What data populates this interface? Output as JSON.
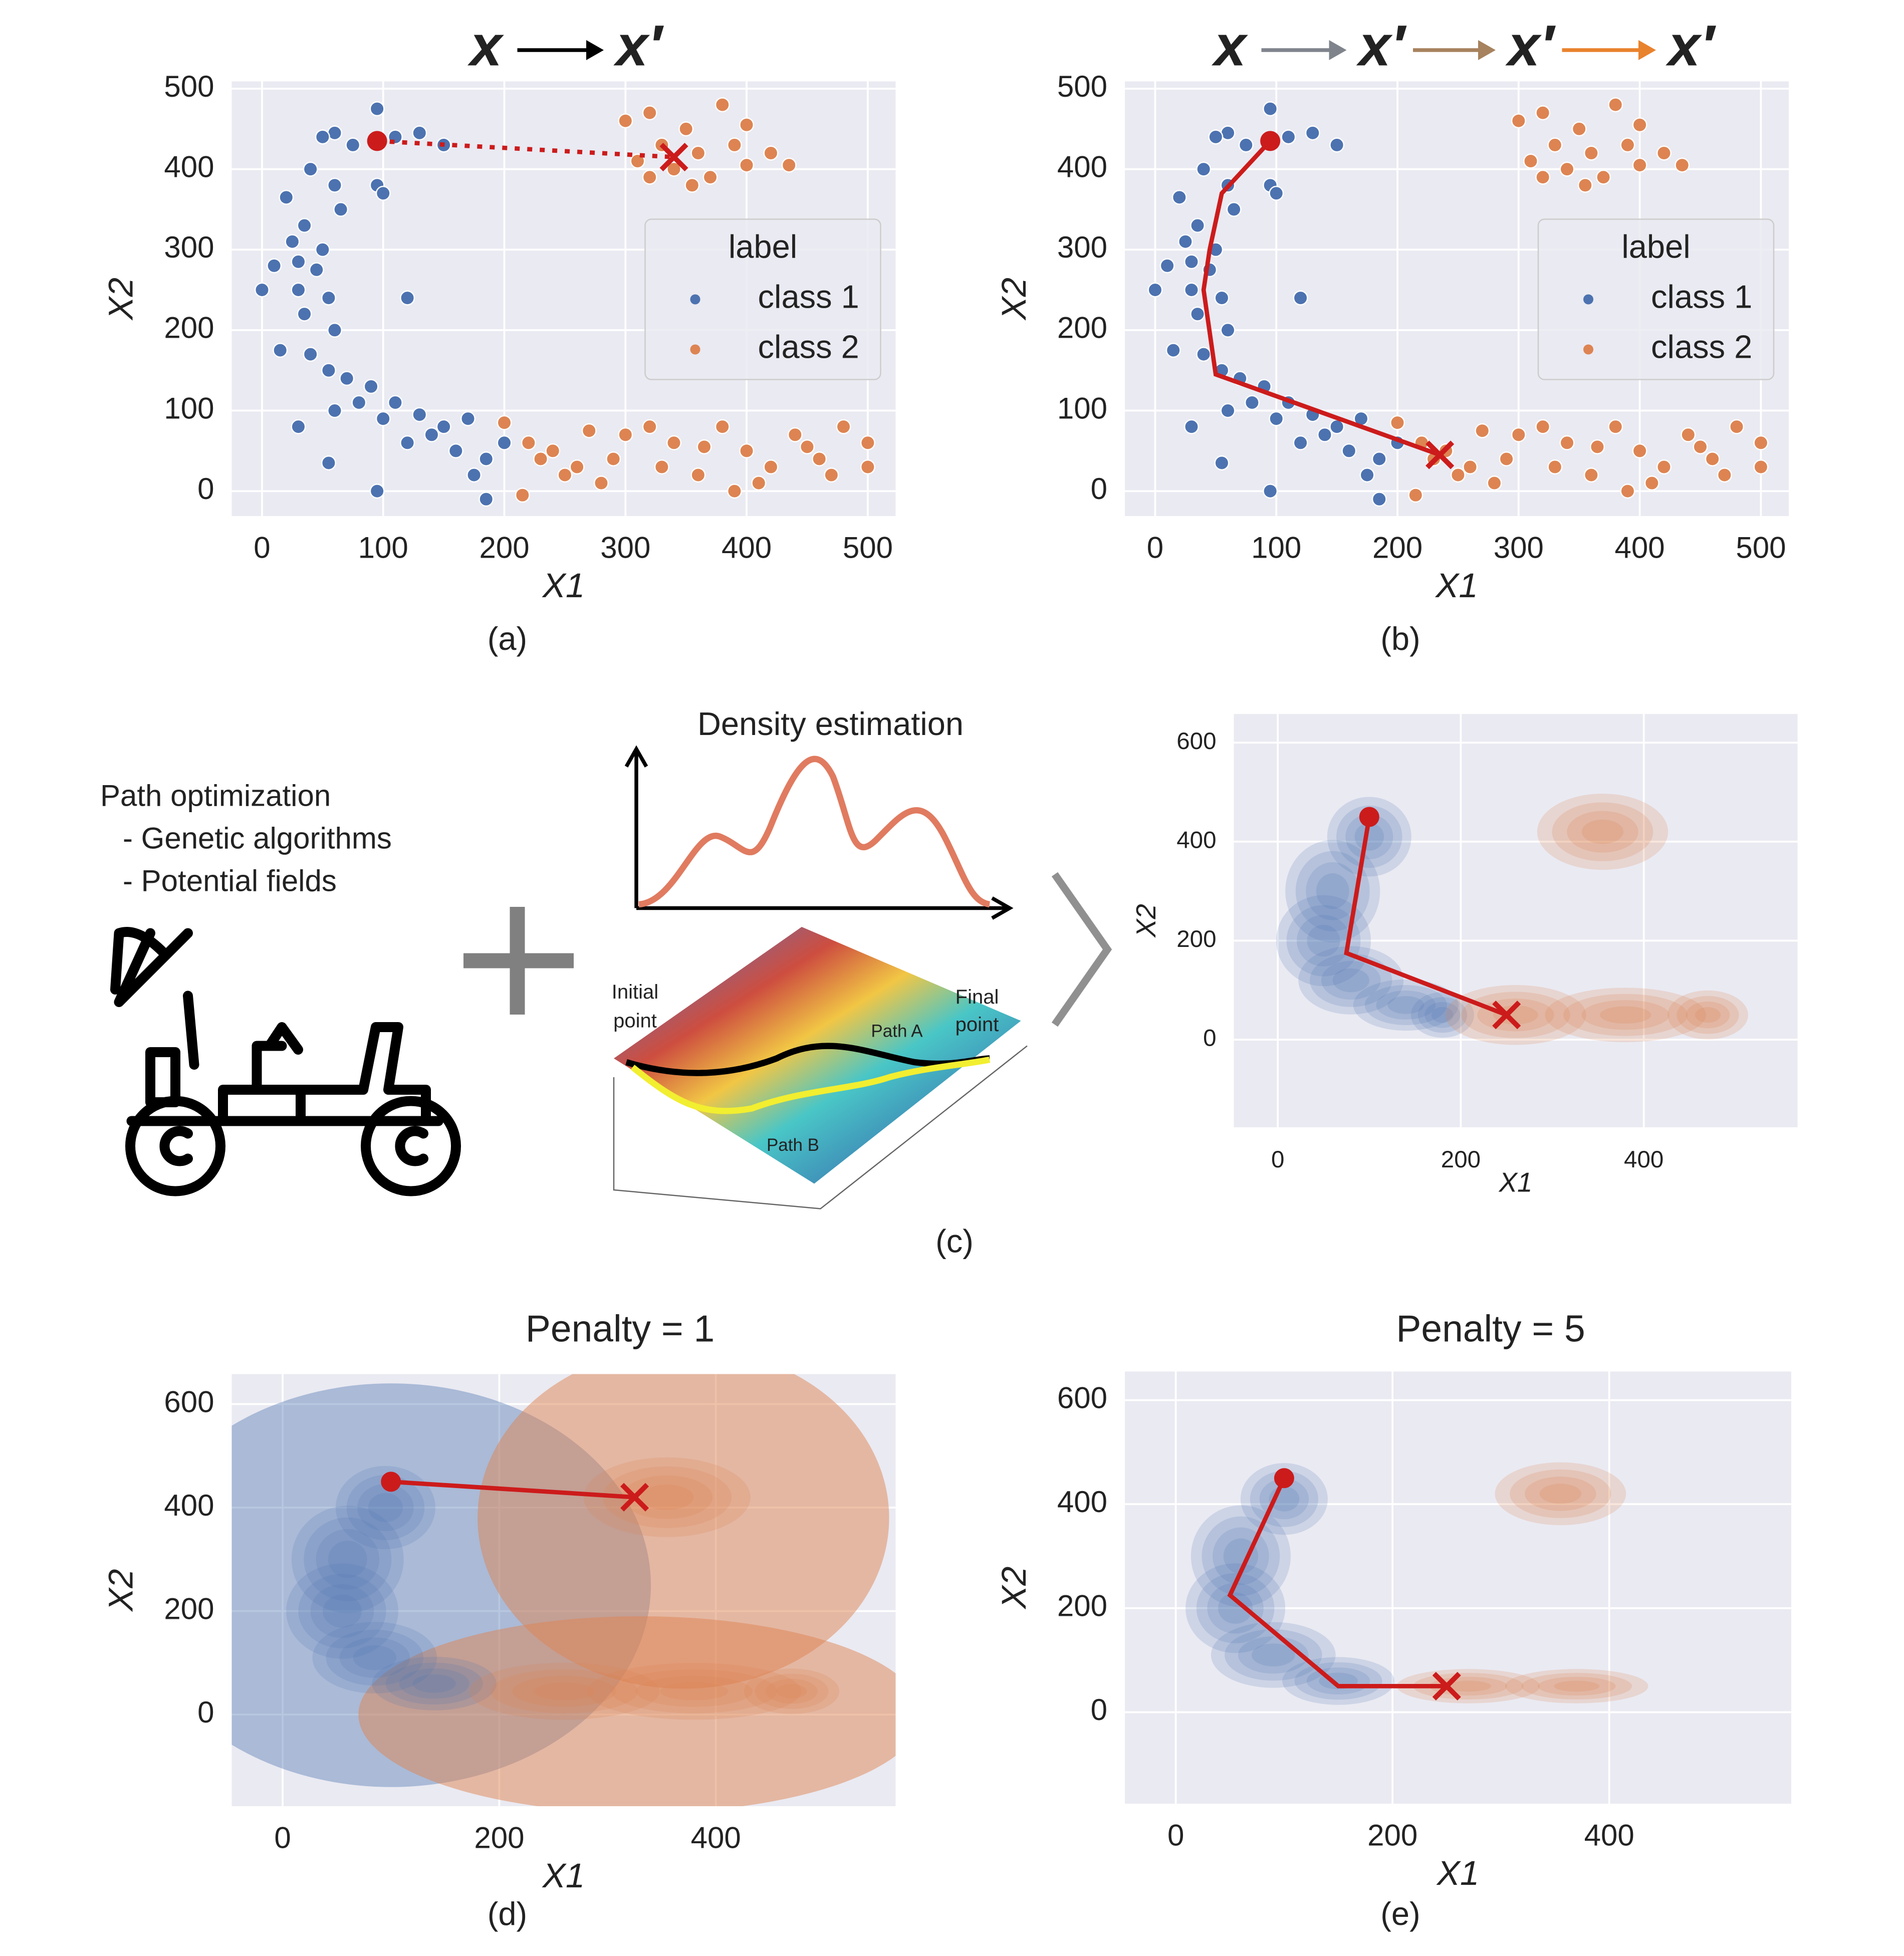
{
  "chart_data": [
    {
      "type": "scatter",
      "caption": "(a)",
      "header": [
        {
          "text": "x",
          "color": "#4a78b5"
        },
        {
          "text": "x′",
          "color": "#e9822d"
        }
      ],
      "xlabel": "X1",
      "ylabel": "X2",
      "xlim": [
        -25,
        523
      ],
      "ylim": [
        -31,
        509
      ],
      "xticks": [
        0,
        100,
        200,
        300,
        400,
        500
      ],
      "yticks": [
        0,
        100,
        200,
        300,
        400,
        500
      ],
      "grid": true,
      "legend_title": "label",
      "legend_loc": "center right",
      "series": [
        {
          "name": "class 1",
          "color": "#4c72b0",
          "x": [
            95,
            60,
            50,
            75,
            110,
            130,
            150,
            40,
            60,
            95,
            100,
            65,
            20,
            35,
            25,
            50,
            10,
            30,
            45,
            0,
            30,
            55,
            35,
            60,
            120,
            15,
            40,
            55,
            70,
            90,
            110,
            60,
            30,
            130,
            150,
            170,
            120,
            160,
            185,
            175,
            95,
            185,
            55,
            100,
            200,
            140,
            80
          ],
          "y": [
            475,
            445,
            440,
            430,
            440,
            445,
            430,
            400,
            380,
            380,
            370,
            350,
            365,
            330,
            310,
            300,
            280,
            285,
            275,
            250,
            250,
            240,
            220,
            200,
            240,
            175,
            170,
            150,
            140,
            130,
            110,
            100,
            80,
            95,
            80,
            90,
            60,
            50,
            40,
            20,
            0,
            -10,
            35,
            90,
            60,
            70,
            110
          ]
        },
        {
          "name": "class 2",
          "color": "#dd8452",
          "x": [
            300,
            320,
            350,
            380,
            400,
            330,
            360,
            390,
            420,
            310,
            340,
            370,
            400,
            435,
            355,
            320,
            200,
            220,
            240,
            260,
            280,
            300,
            320,
            340,
            360,
            380,
            400,
            420,
            440,
            460,
            480,
            500,
            500,
            250,
            290,
            330,
            410,
            470,
            215,
            390,
            450,
            270,
            230,
            365
          ],
          "y": [
            460,
            470,
            450,
            480,
            455,
            430,
            420,
            430,
            420,
            410,
            400,
            390,
            405,
            405,
            380,
            390,
            85,
            60,
            50,
            30,
            10,
            70,
            80,
            60,
            20,
            80,
            50,
            30,
            70,
            40,
            80,
            30,
            60,
            20,
            40,
            30,
            10,
            20,
            -5,
            0,
            55,
            75,
            40,
            55
          ]
        }
      ],
      "path": {
        "x": [
          95,
          340
        ],
        "y": [
          435,
          415
        ]
      },
      "path_style": "dotted"
    },
    {
      "type": "scatter",
      "caption": "(b)",
      "header": [
        {
          "text": "x",
          "color": "#4a78b5"
        },
        {
          "text": "x′",
          "color": "#7f848c"
        },
        {
          "text": "x′",
          "color": "#a7825e"
        },
        {
          "text": "x′",
          "color": "#e9822d"
        }
      ],
      "xlabel": "X1",
      "ylabel": "X2",
      "xlim": [
        -25,
        523
      ],
      "ylim": [
        -31,
        509
      ],
      "xticks": [
        0,
        100,
        200,
        300,
        400,
        500
      ],
      "yticks": [
        0,
        100,
        200,
        300,
        400,
        500
      ],
      "grid": true,
      "legend_title": "label",
      "legend_loc": "center right",
      "series": [
        {
          "name": "class 1",
          "color": "#4c72b0",
          "x": [
            95,
            60,
            50,
            75,
            110,
            130,
            150,
            40,
            60,
            95,
            100,
            65,
            20,
            35,
            25,
            50,
            10,
            30,
            45,
            0,
            30,
            55,
            35,
            60,
            120,
            15,
            40,
            55,
            70,
            90,
            110,
            60,
            30,
            130,
            150,
            170,
            120,
            160,
            185,
            175,
            95,
            185,
            55,
            100,
            200,
            140,
            80
          ],
          "y": [
            475,
            445,
            440,
            430,
            440,
            445,
            430,
            400,
            380,
            380,
            370,
            350,
            365,
            330,
            310,
            300,
            280,
            285,
            275,
            250,
            250,
            240,
            220,
            200,
            240,
            175,
            170,
            150,
            140,
            130,
            110,
            100,
            80,
            95,
            80,
            90,
            60,
            50,
            40,
            20,
            0,
            -10,
            35,
            90,
            60,
            70,
            110
          ]
        },
        {
          "name": "class 2",
          "color": "#dd8452",
          "x": [
            300,
            320,
            350,
            380,
            400,
            330,
            360,
            390,
            420,
            310,
            340,
            370,
            400,
            435,
            355,
            320,
            200,
            220,
            240,
            260,
            280,
            300,
            320,
            340,
            360,
            380,
            400,
            420,
            440,
            460,
            480,
            500,
            500,
            250,
            290,
            330,
            410,
            470,
            215,
            390,
            450,
            270,
            230,
            365
          ],
          "y": [
            460,
            470,
            450,
            480,
            455,
            430,
            420,
            430,
            420,
            410,
            400,
            390,
            405,
            405,
            380,
            390,
            85,
            60,
            50,
            30,
            10,
            70,
            80,
            60,
            20,
            80,
            50,
            30,
            70,
            40,
            80,
            30,
            60,
            20,
            40,
            30,
            10,
            20,
            -5,
            0,
            55,
            75,
            40,
            55
          ]
        }
      ],
      "path": {
        "x": [
          95,
          55,
          45,
          40,
          50,
          235
        ],
        "y": [
          435,
          370,
          300,
          250,
          145,
          45
        ]
      },
      "path_style": "solid"
    },
    {
      "type": "kde",
      "caption": "(c)",
      "xlabel": "X1",
      "ylabel": "X2",
      "xlim": [
        -48,
        568
      ],
      "ylim": [
        -177,
        658
      ],
      "xticks": [
        0,
        200,
        400
      ],
      "yticks": [
        0,
        200,
        400,
        600
      ],
      "grid": true,
      "colors": [
        "#4c72b0",
        "#dd8452"
      ],
      "path": {
        "x": [
          100,
          75,
          250
        ],
        "y": [
          450,
          175,
          50
        ]
      },
      "path_style": "solid"
    },
    {
      "type": "kde",
      "title": "Penalty = 1",
      "caption": "(d)",
      "xlabel": "X1",
      "ylabel": "X2",
      "xlim": [
        -47,
        566
      ],
      "ylim": [
        -177,
        658
      ],
      "xticks": [
        0,
        200,
        400
      ],
      "yticks": [
        0,
        200,
        400,
        600
      ],
      "grid": true,
      "colors": [
        "#4c72b0",
        "#dd8452"
      ],
      "path": {
        "x": [
          100,
          325
        ],
        "y": [
          450,
          420
        ]
      },
      "path_style": "solid"
    },
    {
      "type": "kde",
      "title": "Penalty = 5",
      "caption": "(e)",
      "xlabel": "X1",
      "ylabel": "X2",
      "xlim": [
        -47,
        568
      ],
      "ylim": [
        -176,
        655
      ],
      "xticks": [
        0,
        200,
        400
      ],
      "yticks": [
        0,
        200,
        400,
        600
      ],
      "grid": true,
      "colors": [
        "#4c72b0",
        "#dd8452"
      ],
      "path": {
        "x": [
          100,
          50,
          150,
          250
        ],
        "y": [
          450,
          225,
          50,
          50
        ]
      },
      "path_style": "solid"
    }
  ],
  "diagram": {
    "optimization_title": "Path optimization",
    "optimization_items": [
      "- Genetic algorithms",
      "- Potential fields"
    ],
    "density_title": "Density estimation",
    "initial_point": [
      "Initial",
      "point"
    ],
    "final_point": [
      "Final",
      "point"
    ],
    "path_a": "Path A",
    "path_b": "Path B"
  }
}
